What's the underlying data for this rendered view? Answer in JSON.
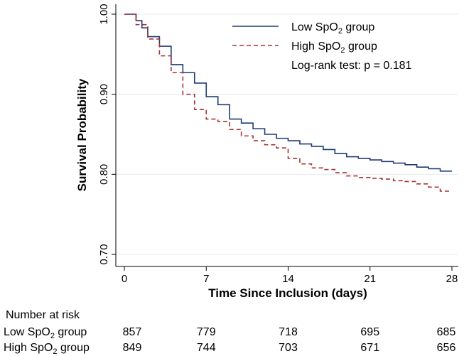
{
  "chart_data": {
    "type": "line",
    "step": true,
    "xlabel": "Time Since Inclusion (days)",
    "ylabel": "Survival Probability",
    "xlim": [
      0,
      28
    ],
    "ylim": [
      0.7,
      1.0
    ],
    "xticks": [
      0,
      7,
      14,
      21,
      28
    ],
    "xtick_labels": [
      "0",
      "7",
      "14",
      "21",
      "28"
    ],
    "yticks": [
      0.7,
      0.8,
      0.9,
      1.0
    ],
    "ytick_labels": [
      "0.70",
      "0.80",
      "0.90",
      "1.00"
    ],
    "grid": "horizontal",
    "legend_position": "top-right",
    "annotation": "Log-rank test: p = 0.181",
    "series": [
      {
        "name": "Low SpO₂ group",
        "name_parts": [
          "Low SpO",
          "2",
          " group"
        ],
        "color": "#1f3b73",
        "dash": "solid",
        "x": [
          0,
          1,
          1.5,
          2,
          3,
          4,
          5,
          6,
          7,
          8,
          9,
          10,
          11,
          12,
          13,
          14,
          15,
          16,
          17,
          18,
          19,
          20,
          21,
          22,
          23,
          24,
          25,
          26,
          27,
          28
        ],
        "y": [
          1.0,
          0.992,
          0.983,
          0.972,
          0.96,
          0.937,
          0.927,
          0.914,
          0.897,
          0.887,
          0.869,
          0.864,
          0.857,
          0.85,
          0.845,
          0.842,
          0.838,
          0.835,
          0.831,
          0.826,
          0.822,
          0.82,
          0.818,
          0.816,
          0.814,
          0.812,
          0.809,
          0.807,
          0.804,
          0.804
        ]
      },
      {
        "name": "High SpO₂ group",
        "name_parts": [
          "High SpO",
          "2",
          " group"
        ],
        "color": "#a83232",
        "dash": "dashed",
        "x": [
          0,
          1,
          2,
          3,
          4,
          5,
          6,
          7,
          8,
          9,
          10,
          11,
          12,
          13,
          14,
          15,
          16,
          17,
          18,
          19,
          20,
          21,
          22,
          23,
          24,
          25,
          26,
          27,
          28
        ],
        "y": [
          1.0,
          0.987,
          0.969,
          0.948,
          0.927,
          0.9,
          0.881,
          0.869,
          0.866,
          0.856,
          0.848,
          0.842,
          0.837,
          0.833,
          0.82,
          0.813,
          0.808,
          0.806,
          0.802,
          0.798,
          0.796,
          0.795,
          0.794,
          0.792,
          0.791,
          0.788,
          0.784,
          0.779,
          0.779
        ]
      }
    ],
    "risk_table": {
      "title": "Number at risk",
      "rows": [
        {
          "label_parts": [
            "Low SpO",
            "2",
            " group"
          ],
          "values": [
            "857",
            "779",
            "718",
            "695",
            "685"
          ]
        },
        {
          "label_parts": [
            "High SpO",
            "2",
            " group"
          ],
          "values": [
            "849",
            "744",
            "703",
            "671",
            "656"
          ]
        }
      ]
    }
  }
}
